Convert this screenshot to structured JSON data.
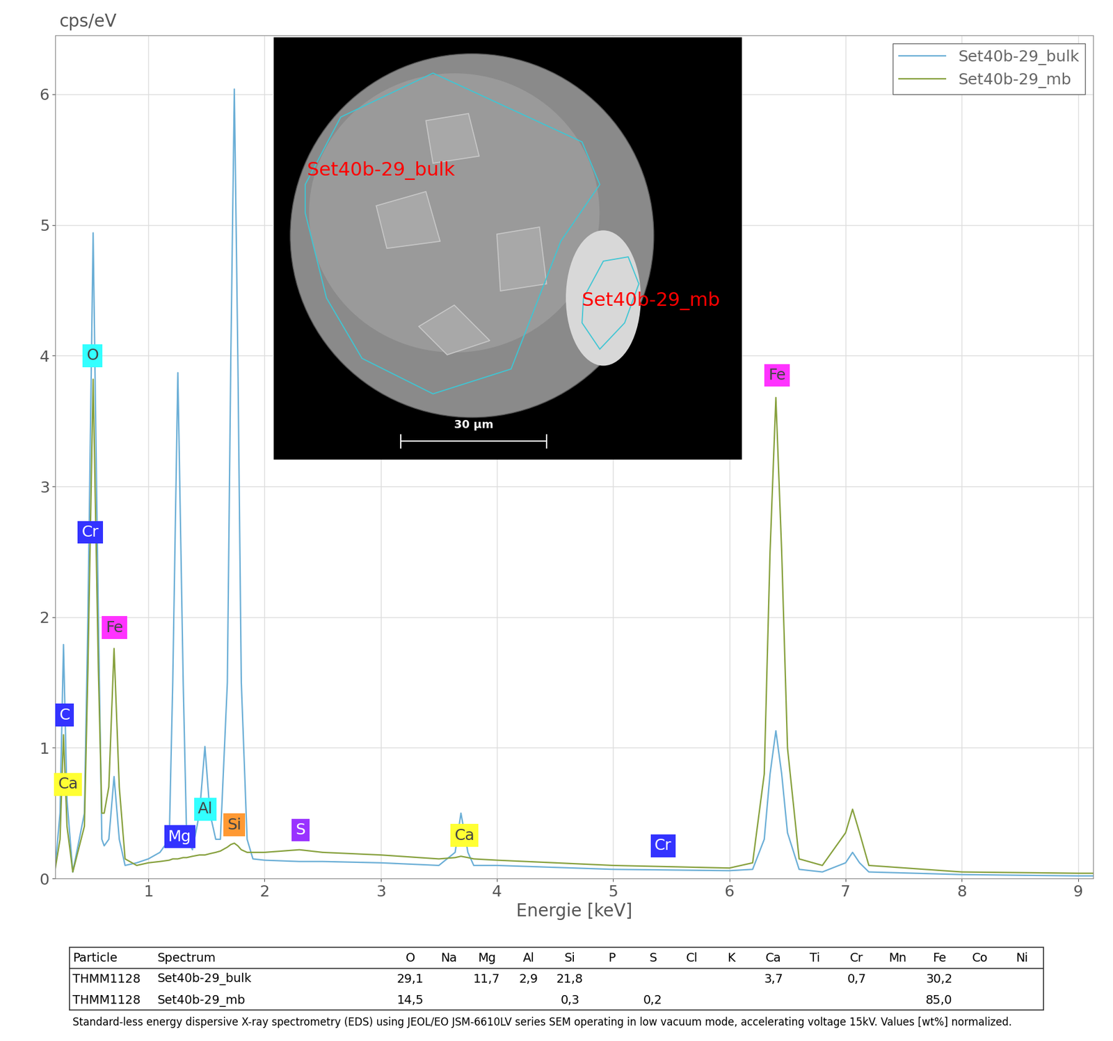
{
  "chart_data": {
    "type": "line",
    "x_label": "Energie [keV]",
    "y_label": "cps/eV",
    "x": [
      0.2,
      0.24,
      0.27,
      0.3,
      0.35,
      0.45,
      0.48,
      0.525,
      0.57,
      0.6,
      0.62,
      0.66,
      0.705,
      0.75,
      0.8,
      0.9,
      1.0,
      1.1,
      1.18,
      1.21,
      1.254,
      1.3,
      1.33,
      1.38,
      1.44,
      1.487,
      1.53,
      1.58,
      1.62,
      1.68,
      1.71,
      1.74,
      1.77,
      1.8,
      1.85,
      1.9,
      2.0,
      2.3,
      2.5,
      3.0,
      3.5,
      3.64,
      3.69,
      3.75,
      3.8,
      4.0,
      5.0,
      6.0,
      6.2,
      6.3,
      6.35,
      6.4,
      6.45,
      6.5,
      6.6,
      6.8,
      7.0,
      7.06,
      7.12,
      7.2,
      8.0,
      9.0,
      9.13
    ],
    "series": [
      {
        "name": "Set40b-29_bulk",
        "color": "#6aaed6",
        "values": [
          0.1,
          0.5,
          1.79,
          0.6,
          0.05,
          0.5,
          2.0,
          4.94,
          2.0,
          0.3,
          0.25,
          0.3,
          0.78,
          0.3,
          0.1,
          0.12,
          0.15,
          0.2,
          0.3,
          1.5,
          3.87,
          1.5,
          0.3,
          0.22,
          0.5,
          1.01,
          0.5,
          0.3,
          0.3,
          1.5,
          4.0,
          6.04,
          4.0,
          1.5,
          0.3,
          0.15,
          0.14,
          0.13,
          0.13,
          0.12,
          0.1,
          0.2,
          0.5,
          0.2,
          0.1,
          0.1,
          0.07,
          0.06,
          0.07,
          0.3,
          0.8,
          1.13,
          0.8,
          0.35,
          0.07,
          0.05,
          0.12,
          0.2,
          0.12,
          0.05,
          0.03,
          0.02,
          0.02
        ]
      },
      {
        "name": "Set40b-29_mb",
        "color": "#86a03c",
        "values": [
          0.08,
          0.3,
          1.1,
          0.4,
          0.05,
          0.4,
          1.6,
          3.82,
          1.6,
          0.5,
          0.5,
          0.7,
          1.76,
          0.7,
          0.15,
          0.1,
          0.12,
          0.13,
          0.14,
          0.15,
          0.15,
          0.16,
          0.16,
          0.17,
          0.18,
          0.18,
          0.19,
          0.2,
          0.21,
          0.24,
          0.26,
          0.27,
          0.25,
          0.22,
          0.2,
          0.2,
          0.2,
          0.22,
          0.2,
          0.18,
          0.15,
          0.16,
          0.17,
          0.16,
          0.15,
          0.14,
          0.1,
          0.08,
          0.12,
          0.8,
          2.5,
          3.68,
          2.5,
          1.0,
          0.15,
          0.1,
          0.35,
          0.53,
          0.35,
          0.1,
          0.05,
          0.04,
          0.04
        ]
      }
    ],
    "xlim": [
      0.2,
      9.13
    ],
    "ylim": [
      0,
      6.45
    ],
    "xticks": [
      1,
      2,
      3,
      4,
      5,
      6,
      7,
      8,
      9
    ],
    "yticks": [
      0,
      1,
      2,
      3,
      4,
      5,
      6
    ],
    "grid": true,
    "legend": "upper right",
    "annotations": [
      {
        "text": "O",
        "x": 0.52,
        "y": 4.0,
        "color": "#33ffff"
      },
      {
        "text": "Cr",
        "x": 0.5,
        "y": 2.65,
        "color": "#3333ff"
      },
      {
        "text": "Fe",
        "x": 0.71,
        "y": 1.92,
        "color": "#ff33ff"
      },
      {
        "text": "C",
        "x": 0.28,
        "y": 1.25,
        "color": "#3333ff"
      },
      {
        "text": "Ca",
        "x": 0.31,
        "y": 0.72,
        "color": "#ffff33"
      },
      {
        "text": "Mg",
        "x": 1.27,
        "y": 0.32,
        "color": "#3333ff"
      },
      {
        "text": "Al",
        "x": 1.49,
        "y": 0.53,
        "color": "#33ffff"
      },
      {
        "text": "Si",
        "x": 1.74,
        "y": 0.41,
        "color": "#ff9933"
      },
      {
        "text": "S",
        "x": 2.31,
        "y": 0.37,
        "color": "#9933ff"
      },
      {
        "text": "Ca",
        "x": 3.72,
        "y": 0.33,
        "color": "#ffff33"
      },
      {
        "text": "Cr",
        "x": 5.43,
        "y": 0.25,
        "color": "#3333ff"
      },
      {
        "text": "Fe",
        "x": 6.41,
        "y": 3.85,
        "color": "#ff33ff"
      }
    ]
  },
  "inset": {
    "labels": [
      "Set40b-29_bulk",
      "Set40b-29_mb"
    ],
    "scale_bar": "30 µm"
  },
  "table": {
    "columns": [
      "Particle",
      "Spectrum",
      "O",
      "Na",
      "Mg",
      "Al",
      "Si",
      "P",
      "S",
      "Cl",
      "K",
      "Ca",
      "Ti",
      "Cr",
      "Mn",
      "Fe",
      "Co",
      "Ni"
    ],
    "rows": [
      [
        "THMM1128",
        "Set40b-29_bulk",
        "29,1",
        null,
        "11,7",
        "2,9",
        "21,8",
        null,
        null,
        null,
        null,
        "3,7",
        null,
        "0,7",
        null,
        "30,2",
        null,
        null
      ],
      [
        "THMM1128",
        "Set40b-29_mb",
        "14,5",
        null,
        null,
        null,
        "0,3",
        null,
        "0,2",
        null,
        null,
        null,
        null,
        null,
        null,
        "85,0",
        null,
        null
      ]
    ]
  },
  "footnote": "Standard-less energy dispersive X-ray spectrometry (EDS) using JEOL/EO JSM-6610LV series SEM operating in low vacuum mode, accelerating voltage 15kV. Values [wt%] normalized."
}
